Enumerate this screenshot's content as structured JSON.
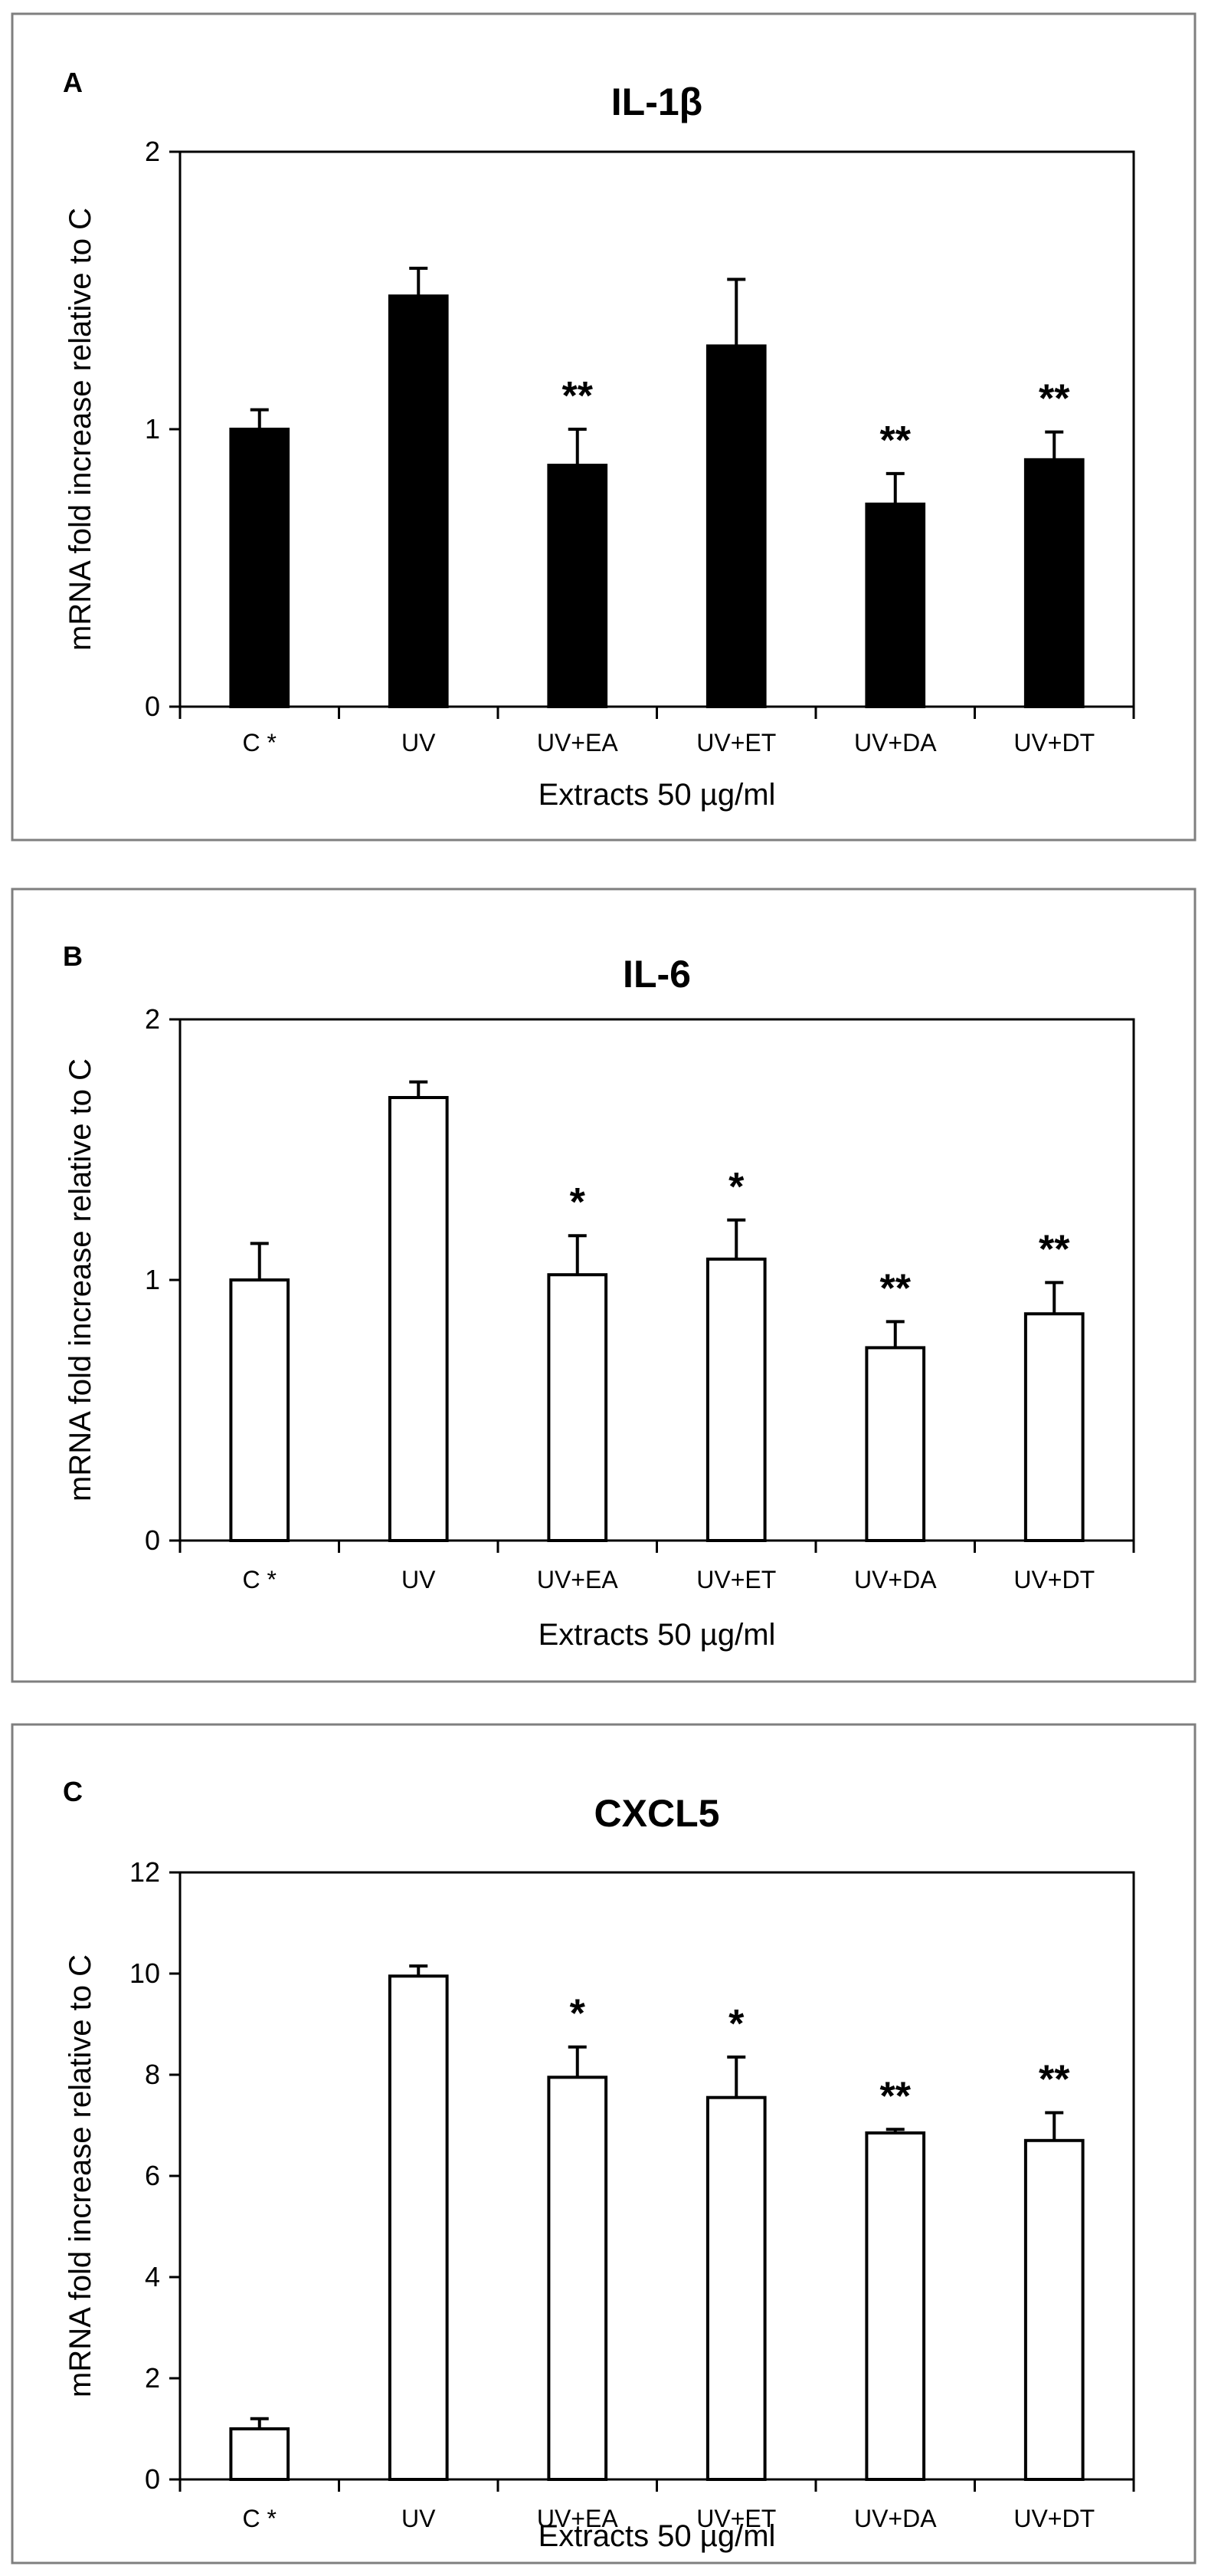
{
  "chart_data": [
    {
      "type": "bar",
      "panel": "A",
      "title": "IL-1β",
      "categories": [
        "C *",
        "UV",
        "UV+EA",
        "UV+ET",
        "UV+DA",
        "UV+DT"
      ],
      "values": [
        1.0,
        1.48,
        0.87,
        1.3,
        0.73,
        0.89
      ],
      "errors": [
        0.07,
        0.1,
        0.13,
        0.24,
        0.11,
        0.1
      ],
      "significance": [
        "",
        "",
        "**",
        "",
        "**",
        "**"
      ],
      "xlabel": "Extracts 50 µg/ml",
      "ylabel": "mRNA fold increase relative to C",
      "ylim": [
        0,
        2
      ],
      "yticks": [
        0,
        1,
        2
      ],
      "bar_color": "#000000"
    },
    {
      "type": "bar",
      "panel": "B",
      "title": "IL-6",
      "categories": [
        "C *",
        "UV",
        "UV+EA",
        "UV+ET",
        "UV+DA",
        "UV+DT"
      ],
      "values": [
        1.0,
        1.7,
        1.02,
        1.08,
        0.74,
        0.87
      ],
      "errors": [
        0.14,
        0.06,
        0.15,
        0.15,
        0.1,
        0.12
      ],
      "significance": [
        "",
        "",
        "*",
        "*",
        "**",
        "**"
      ],
      "xlabel": "Extracts 50 µg/ml",
      "ylabel": "mRNA fold increase relative to C",
      "ylim": [
        0,
        2
      ],
      "yticks": [
        0,
        1,
        2
      ],
      "bar_color": "#ffffff"
    },
    {
      "type": "bar",
      "panel": "C",
      "title": "CXCL5",
      "categories": [
        "C *",
        "UV",
        "UV+EA",
        "UV+ET",
        "UV+DA",
        "UV+DT"
      ],
      "values": [
        1.0,
        9.95,
        7.95,
        7.55,
        6.85,
        6.7
      ],
      "errors": [
        0.2,
        0.2,
        0.6,
        0.8,
        0.07,
        0.55
      ],
      "significance": [
        "",
        "",
        "*",
        "*",
        "**",
        "**"
      ],
      "xlabel": "Extracts 50 µg/ml",
      "ylabel": "mRNA fold increase relative to C",
      "ylim": [
        0,
        12
      ],
      "yticks": [
        0,
        2,
        4,
        6,
        8,
        10,
        12
      ],
      "bar_color": "#ffffff"
    }
  ]
}
